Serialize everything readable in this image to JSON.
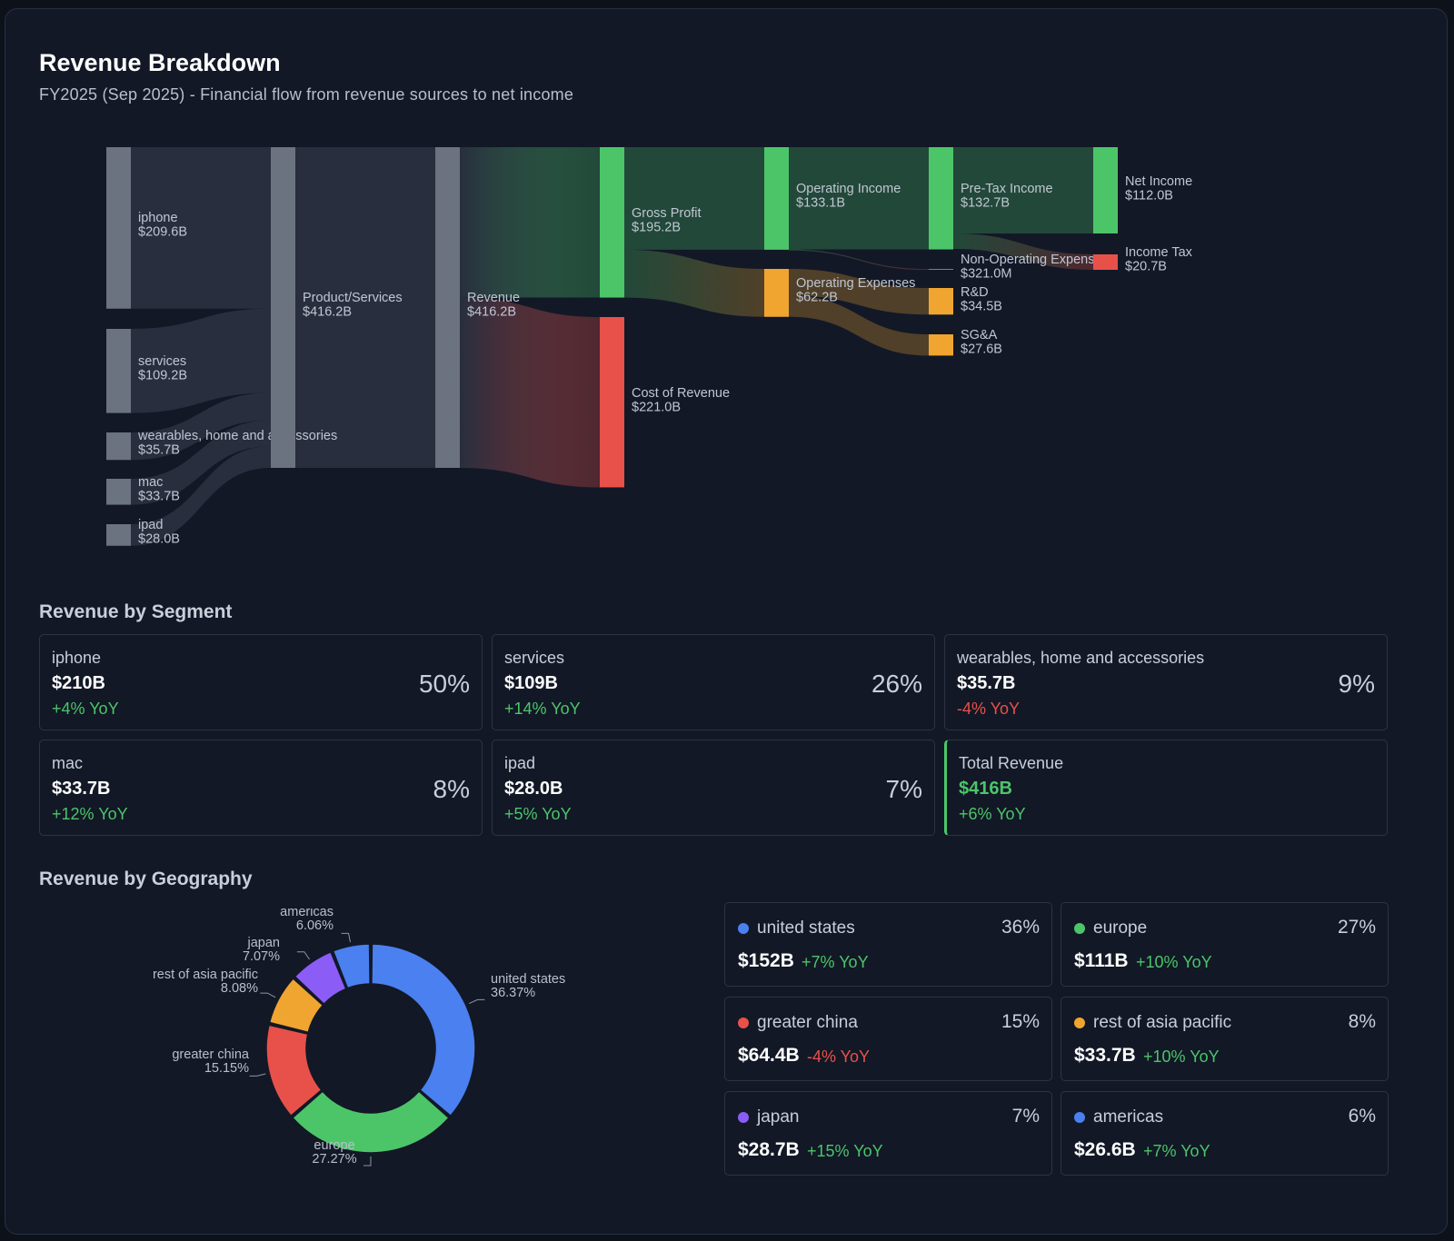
{
  "header": {
    "title": "Revenue Breakdown",
    "subtitle": "FY2025 (Sep 2025) - Financial flow from revenue sources to net income"
  },
  "colors": {
    "gray": "#6b7280",
    "green": "#4cc569",
    "red": "#e8514a",
    "orange": "#f0a530",
    "blue": "#4a80f0",
    "purple": "#8b5cf6"
  },
  "chart_data": [
    {
      "type": "sankey",
      "unit": "$B",
      "nodes": [
        {
          "id": "iphone",
          "label": "iphone",
          "value_label": "$209.6B",
          "value": 209.6,
          "color": "gray"
        },
        {
          "id": "services",
          "label": "services",
          "value_label": "$109.2B",
          "value": 109.2,
          "color": "gray"
        },
        {
          "id": "wearables",
          "label": "wearables, home and accessories",
          "value_label": "$35.7B",
          "value": 35.7,
          "color": "gray"
        },
        {
          "id": "mac",
          "label": "mac",
          "value_label": "$33.7B",
          "value": 33.7,
          "color": "gray"
        },
        {
          "id": "ipad",
          "label": "ipad",
          "value_label": "$28.0B",
          "value": 28.0,
          "color": "gray"
        },
        {
          "id": "products",
          "label": "Product/Services",
          "value_label": "$416.2B",
          "value": 416.2,
          "color": "gray"
        },
        {
          "id": "revenue",
          "label": "Revenue",
          "value_label": "$416.2B",
          "value": 416.2,
          "color": "gray"
        },
        {
          "id": "gross",
          "label": "Gross Profit",
          "value_label": "$195.2B",
          "value": 195.2,
          "color": "green"
        },
        {
          "id": "cor",
          "label": "Cost of Revenue",
          "value_label": "$221.0B",
          "value": 221.0,
          "color": "red"
        },
        {
          "id": "opinc",
          "label": "Operating Income",
          "value_label": "$133.1B",
          "value": 133.1,
          "color": "green"
        },
        {
          "id": "opex",
          "label": "Operating Expenses",
          "value_label": "$62.2B",
          "value": 62.2,
          "color": "orange"
        },
        {
          "id": "pretax",
          "label": "Pre-Tax Income",
          "value_label": "$132.7B",
          "value": 132.7,
          "color": "green"
        },
        {
          "id": "nonop",
          "label": "Non-Operating Expense",
          "value_label": "$321.0M",
          "value": 0.321,
          "color": "red"
        },
        {
          "id": "rd",
          "label": "R&D",
          "value_label": "$34.5B",
          "value": 34.5,
          "color": "orange"
        },
        {
          "id": "sga",
          "label": "SG&A",
          "value_label": "$27.6B",
          "value": 27.6,
          "color": "orange"
        },
        {
          "id": "net",
          "label": "Net Income",
          "value_label": "$112.0B",
          "value": 112.0,
          "color": "green"
        },
        {
          "id": "tax",
          "label": "Income Tax",
          "value_label": "$20.7B",
          "value": 20.7,
          "color": "red"
        }
      ],
      "links": [
        {
          "source": "iphone",
          "target": "products",
          "value": 209.6
        },
        {
          "source": "services",
          "target": "products",
          "value": 109.2
        },
        {
          "source": "wearables",
          "target": "products",
          "value": 35.7
        },
        {
          "source": "mac",
          "target": "products",
          "value": 33.7
        },
        {
          "source": "ipad",
          "target": "products",
          "value": 28.0
        },
        {
          "source": "products",
          "target": "revenue",
          "value": 416.2
        },
        {
          "source": "revenue",
          "target": "gross",
          "value": 195.2
        },
        {
          "source": "revenue",
          "target": "cor",
          "value": 221.0
        },
        {
          "source": "gross",
          "target": "opinc",
          "value": 133.1
        },
        {
          "source": "gross",
          "target": "opex",
          "value": 62.2
        },
        {
          "source": "opinc",
          "target": "pretax",
          "value": 132.7
        },
        {
          "source": "opinc",
          "target": "nonop",
          "value": 0.321
        },
        {
          "source": "opex",
          "target": "rd",
          "value": 34.5
        },
        {
          "source": "opex",
          "target": "sga",
          "value": 27.6
        },
        {
          "source": "pretax",
          "target": "net",
          "value": 112.0
        },
        {
          "source": "pretax",
          "target": "tax",
          "value": 20.7
        }
      ]
    },
    {
      "type": "pie",
      "variant": "donut",
      "slices": [
        {
          "label": "united states",
          "pct_label": "36.37%",
          "value": 36.37,
          "color": "blue"
        },
        {
          "label": "europe",
          "pct_label": "27.27%",
          "value": 27.27,
          "color": "green"
        },
        {
          "label": "greater china",
          "pct_label": "15.15%",
          "value": 15.15,
          "color": "red"
        },
        {
          "label": "rest of asia pacific",
          "pct_label": "8.08%",
          "value": 8.08,
          "color": "orange"
        },
        {
          "label": "japan",
          "pct_label": "7.07%",
          "value": 7.07,
          "color": "purple"
        },
        {
          "label": "americas",
          "pct_label": "6.06%",
          "value": 6.06,
          "color": "blue"
        }
      ]
    }
  ],
  "segments": {
    "title": "Revenue by Segment",
    "cards": [
      {
        "name": "iphone",
        "value": "$210B",
        "yoy": "+4% YoY",
        "trend": "pos",
        "pct": "50%"
      },
      {
        "name": "services",
        "value": "$109B",
        "yoy": "+14% YoY",
        "trend": "pos",
        "pct": "26%"
      },
      {
        "name": "wearables, home and accessories",
        "value": "$35.7B",
        "yoy": "-4% YoY",
        "trend": "neg",
        "pct": "9%"
      },
      {
        "name": "mac",
        "value": "$33.7B",
        "yoy": "+12% YoY",
        "trend": "pos",
        "pct": "8%"
      },
      {
        "name": "ipad",
        "value": "$28.0B",
        "yoy": "+5% YoY",
        "trend": "pos",
        "pct": "7%"
      }
    ],
    "total": {
      "name": "Total Revenue",
      "value": "$416B",
      "yoy": "+6% YoY"
    }
  },
  "geography": {
    "title": "Revenue by Geography",
    "cards": [
      {
        "name": "united states",
        "pct": "36%",
        "value": "$152B",
        "yoy": "+7% YoY",
        "trend": "pos",
        "color": "blue"
      },
      {
        "name": "europe",
        "pct": "27%",
        "value": "$111B",
        "yoy": "+10% YoY",
        "trend": "pos",
        "color": "green"
      },
      {
        "name": "greater china",
        "pct": "15%",
        "value": "$64.4B",
        "yoy": "-4% YoY",
        "trend": "neg",
        "color": "red"
      },
      {
        "name": "rest of asia pacific",
        "pct": "8%",
        "value": "$33.7B",
        "yoy": "+10% YoY",
        "trend": "pos",
        "color": "orange"
      },
      {
        "name": "japan",
        "pct": "7%",
        "value": "$28.7B",
        "yoy": "+15% YoY",
        "trend": "pos",
        "color": "purple"
      },
      {
        "name": "americas",
        "pct": "6%",
        "value": "$26.6B",
        "yoy": "+7% YoY",
        "trend": "pos",
        "color": "blue"
      }
    ]
  }
}
